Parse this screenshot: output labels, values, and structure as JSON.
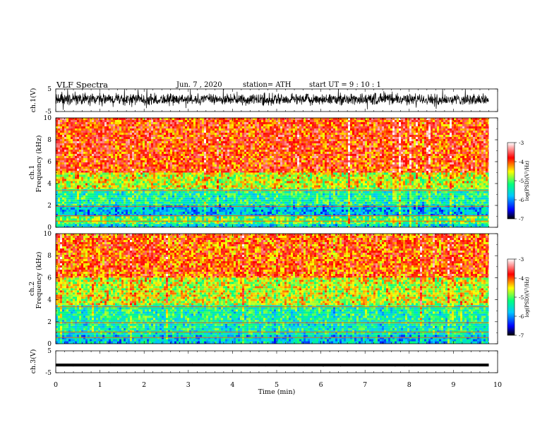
{
  "header": {
    "title": "VLF  Spectra",
    "date": "Jun. 7  , 2020",
    "station": "station= ATH",
    "start": "start  UT  =   9  : 10 : 1"
  },
  "chart_data": [
    {
      "type": "line",
      "panel": "ch1-waveform",
      "ylabel": "ch.1(V)",
      "ylim": [
        -5,
        5
      ],
      "yticks": [
        "5",
        "-5"
      ],
      "description_level": 0.4,
      "noise_amplitude": 2.0
    },
    {
      "type": "heatmap",
      "panel": "ch1-spectrogram",
      "ylabel": "ch.1\nFrequency  (kHz)",
      "ylabel_lines": [
        "ch.1",
        "Frequency  (kHz)"
      ],
      "ylim": [
        0,
        10
      ],
      "yticks": [
        "0",
        "2",
        "4",
        "6",
        "8",
        "10"
      ],
      "colorbar": {
        "label": "log(PSD)(V²/Hz)",
        "ticks": [
          "-3",
          "-4",
          "-5",
          "-6",
          "-7"
        ],
        "range": [
          -7,
          -3
        ]
      },
      "bands_khz": [
        {
          "from": 5.0,
          "to": 10.0,
          "level": -3.9
        },
        {
          "from": 3.5,
          "to": 5.0,
          "level": -4.6
        },
        {
          "from": 2.0,
          "to": 3.5,
          "level": -5.3
        },
        {
          "from": 1.0,
          "to": 2.0,
          "level": -5.8
        },
        {
          "from": 0.3,
          "to": 1.0,
          "level": -5.0
        },
        {
          "from": 0.0,
          "to": 0.3,
          "level": -5.6
        }
      ],
      "colors": [
        "#000000",
        "#0000ff",
        "#00c8ff",
        "#00ff80",
        "#ffff00",
        "#ff0000",
        "#ffffff"
      ]
    },
    {
      "type": "heatmap",
      "panel": "ch2-spectrogram",
      "ylabel": "ch.2\nFrequency  (kHz)",
      "ylabel_lines": [
        "ch.2",
        "Frequency  (kHz)"
      ],
      "ylim": [
        0,
        10
      ],
      "yticks": [
        "0",
        "2",
        "4",
        "6",
        "8",
        "10"
      ],
      "colorbar": {
        "label": "log(PSD)(V²/Hz)",
        "ticks": [
          "-3",
          "-4",
          "-5",
          "-6",
          "-7"
        ],
        "range": [
          -7,
          -3
        ]
      },
      "bands_khz": [
        {
          "from": 6.0,
          "to": 10.0,
          "level": -4.0
        },
        {
          "from": 3.5,
          "to": 6.0,
          "level": -4.6
        },
        {
          "from": 2.0,
          "to": 3.5,
          "level": -5.3
        },
        {
          "from": 0.8,
          "to": 2.0,
          "level": -5.4
        },
        {
          "from": 0.0,
          "to": 0.8,
          "level": -5.7
        }
      ],
      "colors": [
        "#000000",
        "#0000ff",
        "#00c8ff",
        "#00ff80",
        "#ffff00",
        "#ff0000",
        "#ffffff"
      ]
    },
    {
      "type": "line",
      "panel": "ch3-waveform",
      "ylabel": "ch.3(V)",
      "ylim": [
        -5,
        5
      ],
      "yticks": [
        "5",
        "-5"
      ],
      "description_level": -1.5,
      "noise_amplitude": 0.3
    }
  ],
  "xaxis": {
    "label": "Time  (min)",
    "xlim": [
      0,
      10
    ],
    "ticks": [
      "0",
      "1",
      "2",
      "3",
      "4",
      "5",
      "6",
      "7",
      "8",
      "9",
      "10"
    ],
    "data_end_min": 9.8
  },
  "colors": {
    "red": "#ff0000",
    "yellow": "#ffff00",
    "green": "#00ff80",
    "cyan": "#00c8ff",
    "blue": "#0000ff"
  }
}
